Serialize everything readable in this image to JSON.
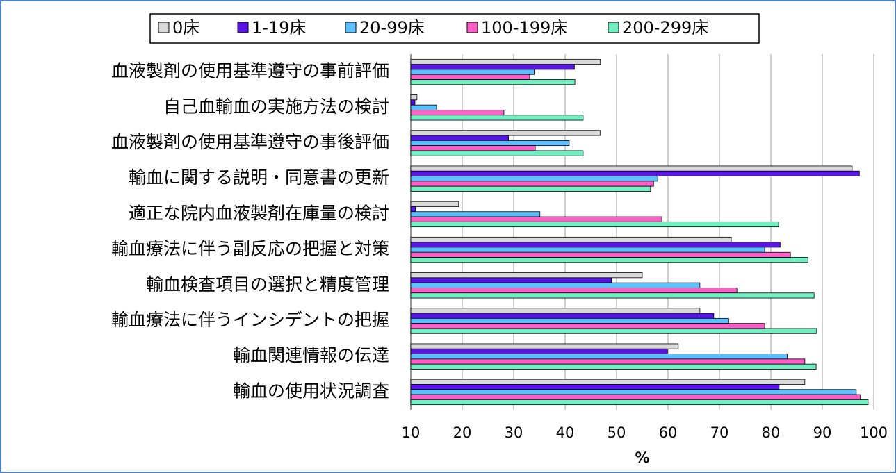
{
  "chart_data": {
    "type": "barh",
    "categories": [
      "血液製剤の使用基準遵守の事前評価",
      "自己血輸血の実施方法の検討",
      "血液製剤の使用基準遵守の事後評価",
      "輸血に関する説明・同意書の更新",
      "適正な院内血液製剤在庫量の検討",
      "輸血療法に伴う副反応の把握と対策",
      "輸血検査項目の選択と精度管理",
      "輸血療法に伴うインシデントの把握",
      "輸血関連情報の伝達",
      "輸血の使用状況調査"
    ],
    "series": [
      {
        "name": "0床",
        "color": "#d9d9d9",
        "values": [
          46.8,
          11.2,
          46.8,
          95.8,
          19.3,
          72.3,
          55,
          66.2,
          62,
          86.6
        ]
      },
      {
        "name": "1-19床",
        "color": "#5b14e6",
        "values": [
          41.8,
          10.8,
          29,
          97.2,
          10.9,
          81.8,
          49,
          68.9,
          59.9,
          81.6
        ]
      },
      {
        "name": "20-99床",
        "color": "#5bc0ff",
        "values": [
          34,
          15,
          40.8,
          58,
          35.1,
          78.8,
          66.2,
          71.8,
          83.2,
          96.6
        ]
      },
      {
        "name": "100-199床",
        "color": "#ff5ec8",
        "values": [
          33.1,
          28.1,
          34.2,
          57.2,
          58.8,
          83.8,
          73.4,
          78.8,
          86.6,
          97.4
        ]
      },
      {
        "name": "200-299床",
        "color": "#72f0c2",
        "values": [
          41.9,
          43.5,
          43.5,
          56.6,
          81.5,
          87.2,
          88.4,
          88.9,
          88.8,
          98.9
        ]
      }
    ],
    "xlabel": "%",
    "xlim": [
      10,
      100
    ],
    "xticks": [
      10,
      20,
      30,
      40,
      50,
      60,
      70,
      80,
      90,
      100
    ],
    "grid": true,
    "legend": "top"
  }
}
